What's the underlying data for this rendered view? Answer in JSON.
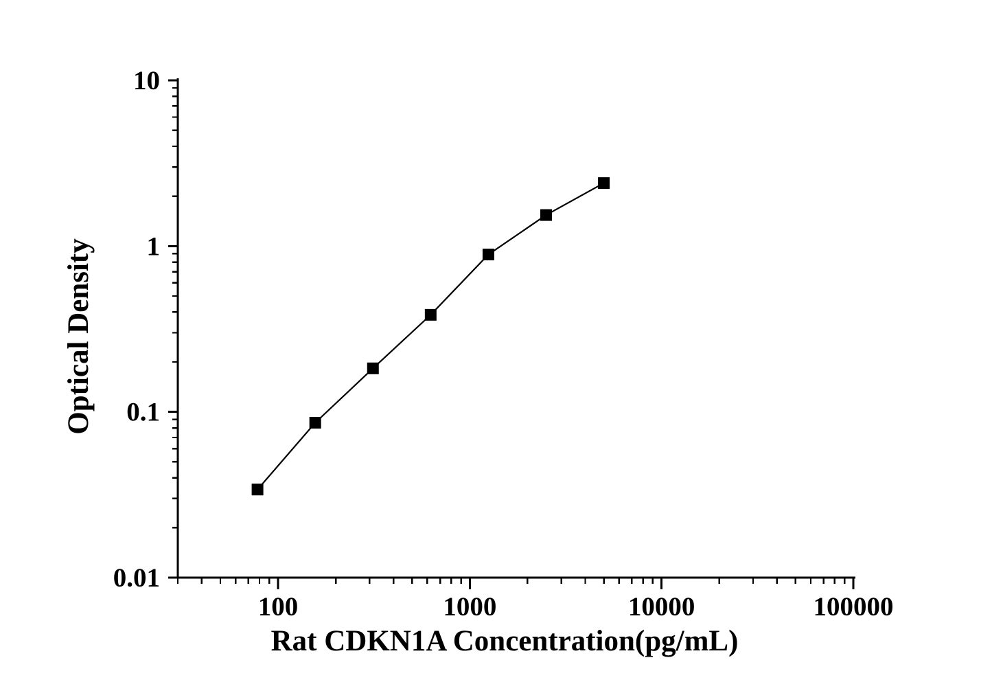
{
  "figure": {
    "background_color": "#ffffff",
    "ink_color": "#000000",
    "title": ""
  },
  "chart_data": {
    "type": "line",
    "subtype": "scatter-with-line-markers",
    "title": "",
    "xlabel": "Rat CDKN1A Concentration(pg/mL)",
    "ylabel": "Optical Density",
    "x_scale": "log",
    "y_scale": "log",
    "xlim": [
      30,
      100000
    ],
    "ylim": [
      0.01,
      10
    ],
    "x_major_ticks": [
      100,
      1000,
      10000,
      100000
    ],
    "x_tick_labels": [
      "100",
      "1000",
      "10000",
      "100000"
    ],
    "y_major_ticks": [
      10,
      1,
      0.1,
      0.01
    ],
    "y_tick_labels": [
      "10",
      "1",
      "0.1",
      "0.01"
    ],
    "minor_ticks": "log-decades",
    "grid": false,
    "legend_position": "none",
    "series": [
      {
        "marker": "filled-square",
        "line_style": "solid",
        "color": "#000000",
        "x": [
          78.125,
          156.25,
          312.5,
          625,
          1250,
          2500,
          5000
        ],
        "y": [
          0.034,
          0.086,
          0.183,
          0.385,
          0.89,
          1.54,
          2.4
        ]
      }
    ]
  }
}
